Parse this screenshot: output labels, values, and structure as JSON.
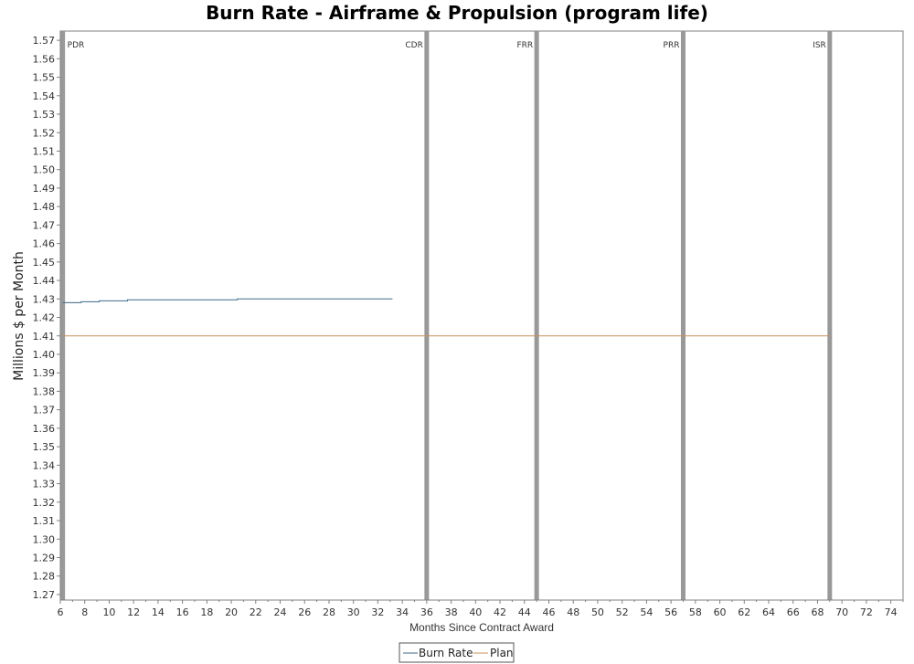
{
  "chart_data": {
    "type": "line",
    "title": "Burn Rate - Airframe & Propulsion (program life)",
    "xlabel": "Months Since Contract Award",
    "ylabel": "Millions $ per Month",
    "xlim": [
      6,
      75
    ],
    "ylim": [
      1.267,
      1.575
    ],
    "x_ticks": [
      6,
      8,
      10,
      12,
      14,
      16,
      18,
      20,
      22,
      24,
      26,
      28,
      30,
      32,
      34,
      36,
      38,
      40,
      42,
      44,
      46,
      48,
      50,
      52,
      54,
      56,
      58,
      60,
      62,
      64,
      66,
      68,
      70,
      72,
      74
    ],
    "y_ticks": [
      "1.27",
      "1.28",
      "1.29",
      "1.30",
      "1.31",
      "1.32",
      "1.33",
      "1.34",
      "1.35",
      "1.36",
      "1.37",
      "1.38",
      "1.39",
      "1.40",
      "1.41",
      "1.42",
      "1.43",
      "1.44",
      "1.45",
      "1.46",
      "1.47",
      "1.48",
      "1.49",
      "1.50",
      "1.51",
      "1.52",
      "1.53",
      "1.54",
      "1.55",
      "1.56",
      "1.57"
    ],
    "grid": false,
    "legend_placement": "bottom-center",
    "series": [
      {
        "name": "Burn Rate",
        "color": "#3d6a8c",
        "step": true,
        "x": [
          6.2,
          7.7,
          9.2,
          11.5,
          20.5,
          33.2
        ],
        "y": [
          1.428,
          1.4285,
          1.429,
          1.4295,
          1.43,
          1.43
        ]
      },
      {
        "name": "Plan",
        "color": "#c8915a",
        "step": false,
        "x": [
          6.2,
          69.0
        ],
        "y": [
          1.41,
          1.41
        ]
      }
    ],
    "milestones": [
      {
        "label": "PDR",
        "x": 6.2
      },
      {
        "label": "CDR",
        "x": 36.0
      },
      {
        "label": "FRR",
        "x": 45.0
      },
      {
        "label": "PRR",
        "x": 57.0
      },
      {
        "label": "ISR",
        "x": 69.0
      }
    ],
    "milestone_color": "#999999"
  }
}
